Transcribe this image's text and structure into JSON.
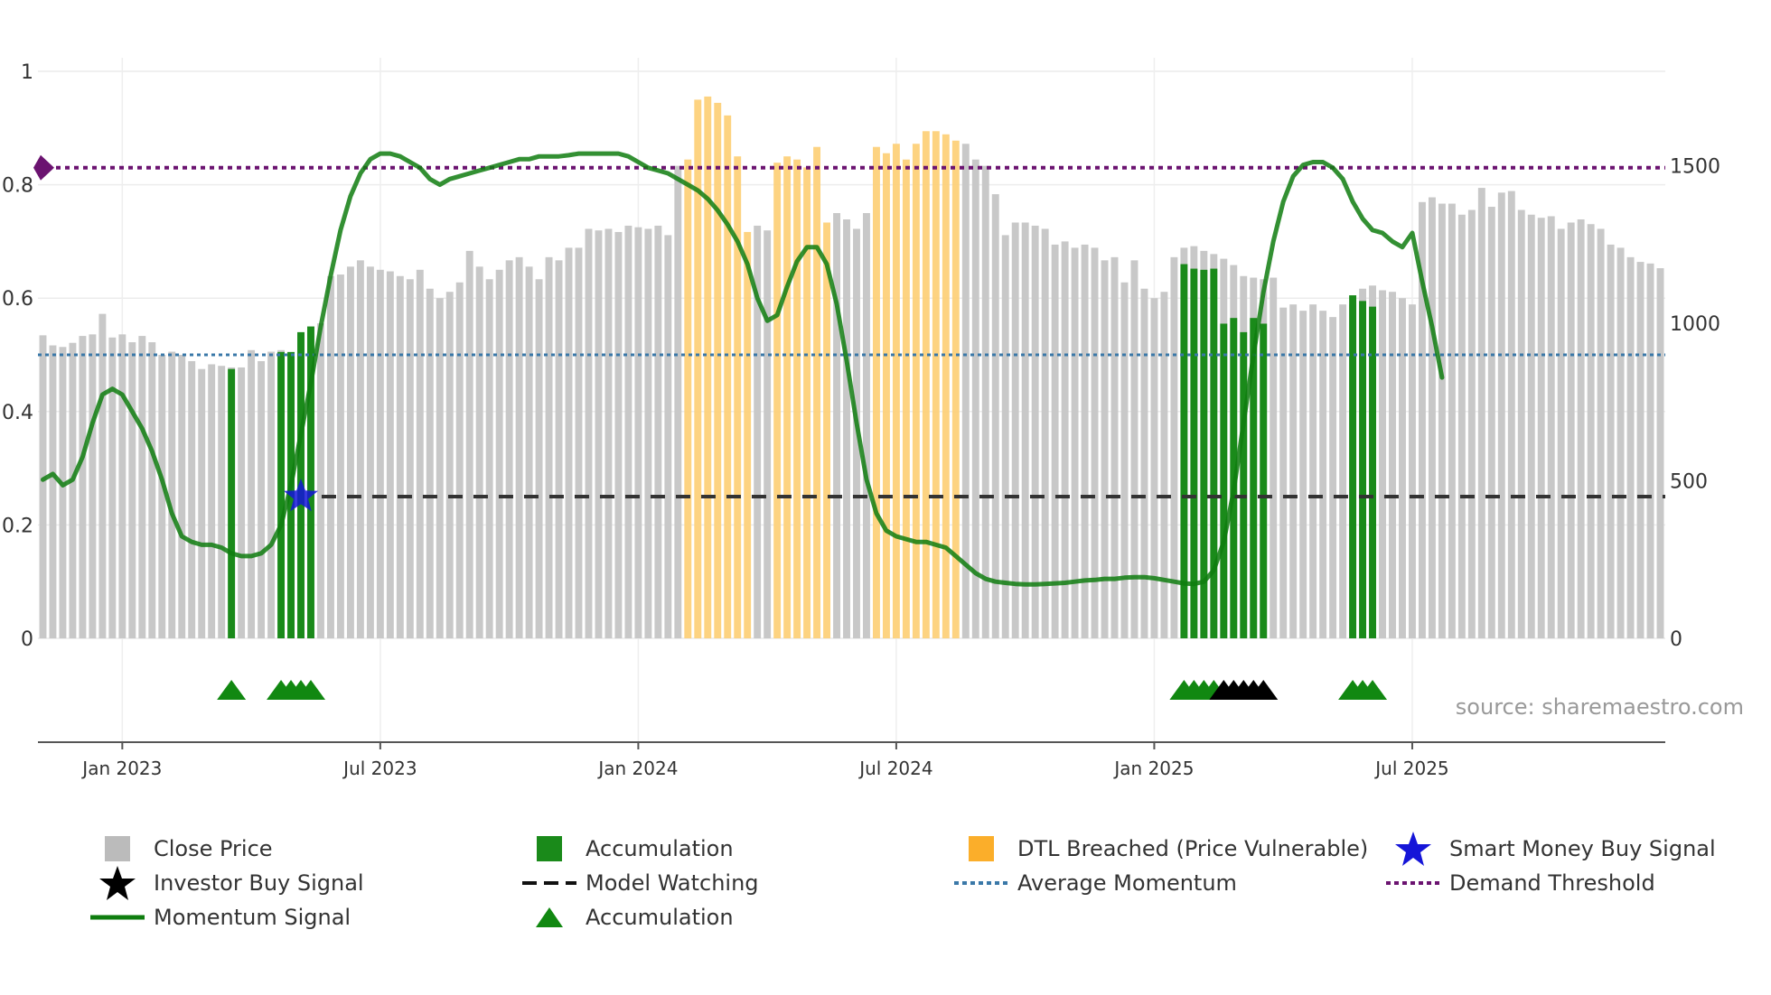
{
  "chart_data": {
    "type": "bar",
    "title": "",
    "source_note": "source: sharemaestro.com",
    "left_axis": {
      "range": [
        0,
        1
      ],
      "ticks": [
        0,
        0.2,
        0.4,
        0.6,
        0.8,
        1
      ],
      "tick_labels": [
        "0",
        "0.2",
        "0.4",
        "0.6",
        "0.8",
        "1"
      ]
    },
    "right_axis": {
      "range": [
        0,
        1800
      ],
      "ticks": [
        0,
        500,
        1000,
        1500
      ],
      "tick_labels": [
        "0",
        "500",
        "1000",
        "1500"
      ]
    },
    "x_axis": {
      "ticks": [
        8,
        34,
        60,
        86,
        112,
        138
      ],
      "tick_labels": [
        "Jan 2023",
        "Jul 2023",
        "Jan 2024",
        "Jul 2024",
        "Jan 2025",
        "Jul 2025"
      ]
    },
    "close_price": [
      962,
      930,
      925,
      938,
      960,
      965,
      1030,
      955,
      965,
      940,
      960,
      940,
      900,
      910,
      900,
      880,
      855,
      870,
      865,
      860,
      860,
      915,
      880,
      910,
      915,
      900,
      965,
      990,
      1000,
      1150,
      1155,
      1180,
      1200,
      1180,
      1170,
      1165,
      1150,
      1140,
      1170,
      1110,
      1080,
      1100,
      1130,
      1230,
      1180,
      1140,
      1170,
      1200,
      1210,
      1180,
      1140,
      1210,
      1200,
      1240,
      1240,
      1300,
      1295,
      1300,
      1290,
      1310,
      1305,
      1300,
      1310,
      1280,
      1500,
      1520,
      1710,
      1720,
      1700,
      1660,
      1530,
      1290,
      1310,
      1295,
      1510,
      1530,
      1520,
      1495,
      1560,
      1320,
      1350,
      1330,
      1300,
      1350,
      1560,
      1540,
      1570,
      1520,
      1570,
      1610,
      1610,
      1600,
      1580,
      1570,
      1520,
      1500,
      1410,
      1280,
      1320,
      1320,
      1310,
      1300,
      1250,
      1260,
      1240,
      1250,
      1240,
      1200,
      1210,
      1130,
      1200,
      1110,
      1080,
      1100,
      1210,
      1240,
      1245,
      1230,
      1220,
      1205,
      1185,
      1150,
      1145,
      1140,
      1145,
      1050,
      1060,
      1040,
      1060,
      1040,
      1020,
      1060,
      1060,
      1110,
      1120,
      1105,
      1100,
      1080,
      1060,
      1385,
      1400,
      1380,
      1380,
      1345,
      1360,
      1430,
      1370,
      1415,
      1420,
      1360,
      1345,
      1335,
      1340,
      1300,
      1320,
      1330,
      1315,
      1300,
      1250,
      1240,
      1210,
      1195,
      1190,
      1175
    ],
    "accumulation_bars": [
      [
        19,
        0.475
      ],
      [
        24,
        0.505
      ],
      [
        25,
        0.505
      ],
      [
        26,
        0.54
      ],
      [
        27,
        0.55
      ],
      [
        115,
        0.66
      ],
      [
        116,
        0.652
      ],
      [
        117,
        0.65
      ],
      [
        118,
        0.652
      ],
      [
        119,
        0.555
      ],
      [
        120,
        0.565
      ],
      [
        121,
        0.54
      ],
      [
        122,
        0.565
      ],
      [
        123,
        0.555
      ],
      [
        132,
        0.605
      ],
      [
        133,
        0.595
      ],
      [
        134,
        0.585
      ]
    ],
    "dtl_breached_indices": [
      65,
      66,
      67,
      68,
      69,
      70,
      71,
      74,
      75,
      76,
      77,
      78,
      79,
      84,
      85,
      86,
      87,
      88,
      89,
      90,
      91,
      92
    ],
    "momentum_signal": [
      0.28,
      0.29,
      0.27,
      0.28,
      0.32,
      0.38,
      0.43,
      0.44,
      0.43,
      0.4,
      0.37,
      0.33,
      0.28,
      0.22,
      0.18,
      0.17,
      0.165,
      0.165,
      0.16,
      0.15,
      0.145,
      0.145,
      0.15,
      0.165,
      0.2,
      0.27,
      0.36,
      0.45,
      0.55,
      0.64,
      0.72,
      0.78,
      0.82,
      0.845,
      0.855,
      0.855,
      0.85,
      0.84,
      0.83,
      0.81,
      0.8,
      0.81,
      0.815,
      0.82,
      0.825,
      0.83,
      0.835,
      0.84,
      0.845,
      0.845,
      0.85,
      0.85,
      0.85,
      0.852,
      0.855,
      0.855,
      0.855,
      0.855,
      0.855,
      0.85,
      0.84,
      0.83,
      0.825,
      0.82,
      0.81,
      0.8,
      0.79,
      0.775,
      0.755,
      0.73,
      0.7,
      0.66,
      0.6,
      0.56,
      0.57,
      0.62,
      0.665,
      0.69,
      0.69,
      0.66,
      0.59,
      0.49,
      0.38,
      0.28,
      0.22,
      0.19,
      0.18,
      0.175,
      0.17,
      0.17,
      0.165,
      0.16,
      0.145,
      0.13,
      0.115,
      0.105,
      0.1,
      0.098,
      0.096,
      0.095,
      0.095,
      0.096,
      0.097,
      0.098,
      0.1,
      0.102,
      0.103,
      0.105,
      0.105,
      0.107,
      0.108,
      0.108,
      0.106,
      0.103,
      0.1,
      0.097,
      0.096,
      0.1,
      0.12,
      0.17,
      0.26,
      0.38,
      0.5,
      0.61,
      0.7,
      0.77,
      0.815,
      0.835,
      0.84,
      0.84,
      0.83,
      0.81,
      0.77,
      0.74,
      0.72,
      0.715,
      0.7,
      0.69,
      0.715,
      0.63,
      0.55,
      0.46
    ],
    "momentum_index_offset": 0,
    "average_momentum": 0.5,
    "demand_threshold": 0.83,
    "model_watching_level": 0.25,
    "model_watching_start_index": 29,
    "smart_money_buy_signal": {
      "index": 26,
      "value": 0.25
    },
    "accumulation_markers_indices": [
      19,
      24,
      25,
      26,
      27,
      115,
      116,
      117,
      118,
      132,
      133,
      134
    ],
    "investor_buy_markers_indices": [
      119,
      120,
      121,
      122,
      123
    ],
    "legend": [
      "Close Price",
      "Accumulation",
      "DTL Breached (Price Vulnerable)",
      "Smart Money Buy Signal",
      "Investor Buy Signal",
      "Model Watching",
      "Average Momentum",
      "Demand Threshold",
      "Momentum Signal",
      "Accumulation"
    ],
    "colors": {
      "close_price": "#c8c8c8",
      "accumulation": "#1a8a1a",
      "dtl": "#fdd17a",
      "momentum": "#0f7d0f",
      "average": "#3a78a8",
      "demand": "#6b1370",
      "model_watching": "#333333",
      "smart_money": "#1515d8",
      "investor_buy": "#000000",
      "marker_green": "#118811"
    }
  }
}
